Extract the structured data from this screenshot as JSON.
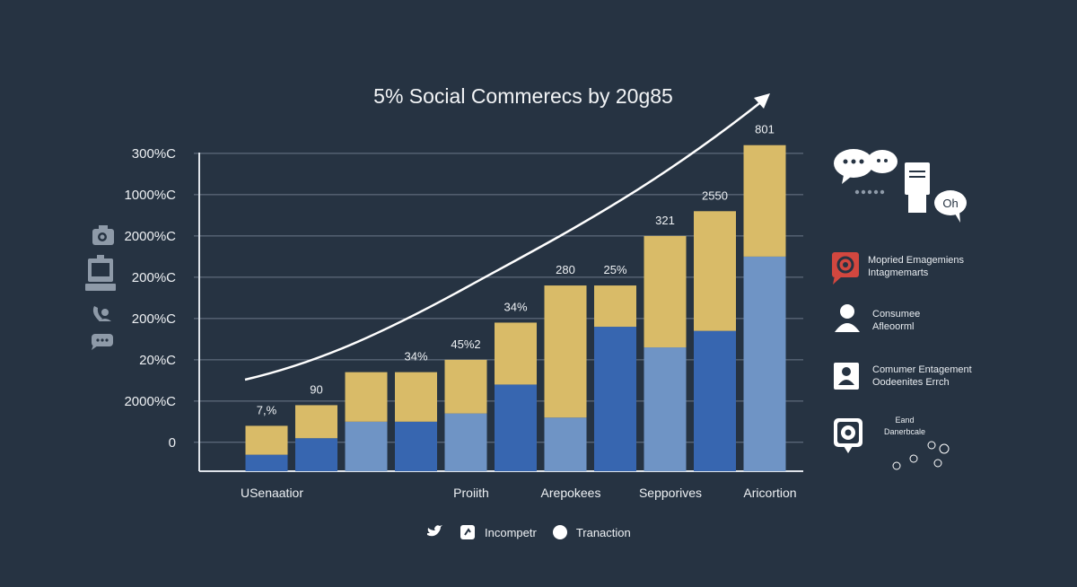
{
  "chart_data": {
    "type": "bar",
    "stacked": true,
    "title": "5% Social Commerecs by 20g85",
    "y_tick_labels": [
      "0",
      "2000%C",
      "20%C",
      "200%C",
      "200%C",
      "2000%C",
      "1000%C",
      "300%C"
    ],
    "y_tick_values": [
      0.7,
      1.7,
      2.7,
      3.7,
      4.7,
      5.7,
      6.7,
      7.7
    ],
    "ylim": [
      0,
      7.72
    ],
    "grid": true,
    "x_labels": [
      {
        "text": "USenaatior",
        "bar": 1
      },
      {
        "text": "Proiith",
        "bar": 5
      },
      {
        "text": "Arepokees",
        "bar": 7
      },
      {
        "text": "Sepporives",
        "bar": 9
      },
      {
        "text": "Aricortion",
        "bar": 11
      }
    ],
    "bars": [
      {
        "bottom": 0.4,
        "top": 0.7,
        "bottom_shade": "dark",
        "label": "7,%"
      },
      {
        "bottom": 0.8,
        "top": 0.8,
        "bottom_shade": "dark",
        "label": "90"
      },
      {
        "bottom": 1.2,
        "top": 1.2,
        "bottom_shade": "light",
        "label": ""
      },
      {
        "bottom": 1.2,
        "top": 1.2,
        "bottom_shade": "dark",
        "label": "34%"
      },
      {
        "bottom": 1.4,
        "top": 1.3,
        "bottom_shade": "light",
        "label": "45%2"
      },
      {
        "bottom": 2.1,
        "top": 1.5,
        "bottom_shade": "dark",
        "label": "34%"
      },
      {
        "bottom": 1.3,
        "top": 3.2,
        "bottom_shade": "light",
        "label": "280"
      },
      {
        "bottom": 3.5,
        "top": 1.0,
        "bottom_shade": "dark",
        "label": "25%"
      },
      {
        "bottom": 3.0,
        "top": 2.7,
        "bottom_shade": "light",
        "label": "321"
      },
      {
        "bottom": 3.4,
        "top": 2.9,
        "bottom_shade": "dark",
        "label": "2550"
      },
      {
        "bottom": 5.2,
        "top": 2.7,
        "bottom_shade": "light",
        "label": "801"
      }
    ],
    "trend_arrow": true,
    "colors": {
      "dark": "#3766b0",
      "light": "#6f94c5",
      "top": "#d9bb68",
      "background": "#263342",
      "grid": "#6b7889"
    }
  },
  "left_icons": [
    "camera-icon",
    "register-icon",
    "phone-user-icon",
    "chat-icon"
  ],
  "right_panel": {
    "items": [
      {
        "icon": "target-chat-icon",
        "line1": "Mopried Emagemiens",
        "line2": "Intagmemarts"
      },
      {
        "icon": "user-icon",
        "line1": "Consumee",
        "line2": "Afleoorml"
      },
      {
        "icon": "user-card-icon",
        "line1": "Comumer Entagement",
        "line2": "Oodeenites Errch"
      },
      {
        "icon": "camera-chat-icon",
        "line1": "Eand",
        "line2": "Danerbcale"
      }
    ],
    "bubble_text": "Oh"
  },
  "legend": [
    {
      "icon": "twitter-bird-icon",
      "label": ""
    },
    {
      "icon": "square-icon",
      "label": "Incompetr"
    },
    {
      "icon": "circle-icon",
      "label": "Tranaction"
    }
  ]
}
